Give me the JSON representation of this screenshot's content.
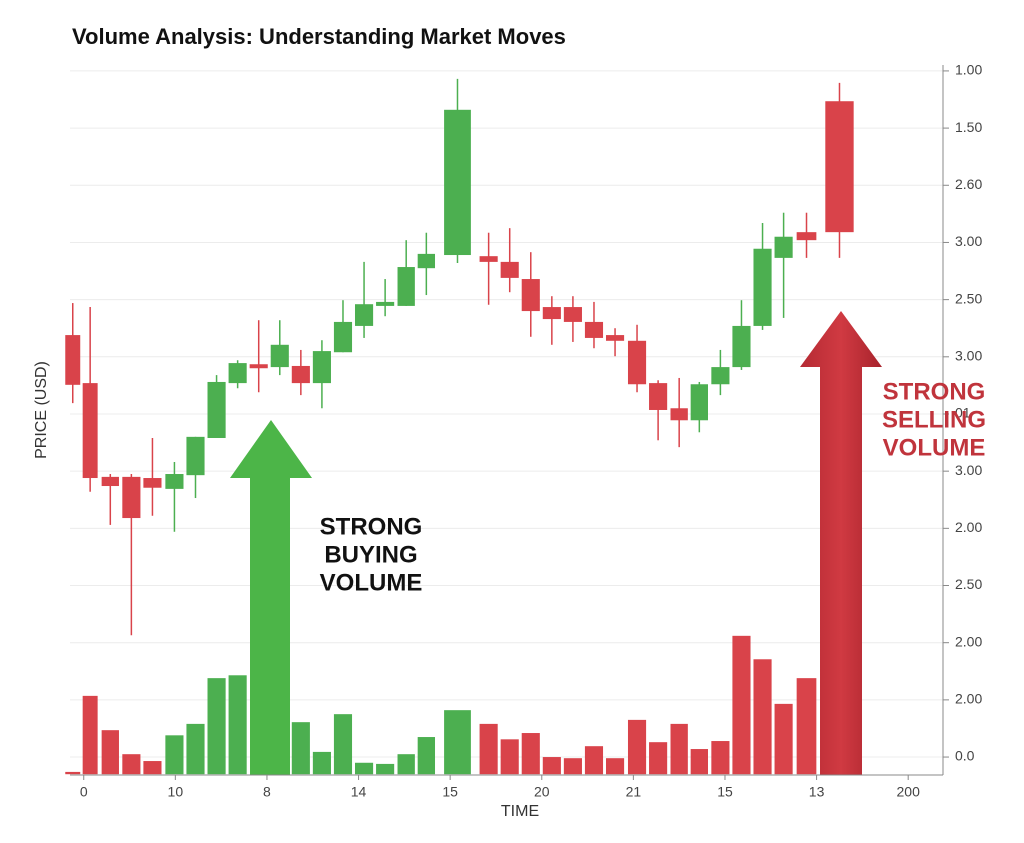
{
  "chart_data": {
    "type": "candlestick",
    "title": "Volume Analysis: Understanding Market Moves",
    "y_label": "PRICE (USD)",
    "x_label": "TIME",
    "grid": true,
    "up_color": "#4caf50",
    "down_color": "#d9434a",
    "ylim": [
      -0.3,
      12.1
    ],
    "yticks": [
      {
        "value": 12,
        "label": "1.00"
      },
      {
        "value": 11,
        "label": "1.50"
      },
      {
        "value": 10,
        "label": "2.60"
      },
      {
        "value": 9,
        "label": "3.00"
      },
      {
        "value": 8,
        "label": "2.50"
      },
      {
        "value": 7,
        "label": "3.00"
      },
      {
        "value": 6,
        "label": "01"
      },
      {
        "value": 5,
        "label": "3.00"
      },
      {
        "value": 4,
        "label": "2.00"
      },
      {
        "value": 3,
        "label": "2.50"
      },
      {
        "value": 2,
        "label": "2.00"
      },
      {
        "value": 1,
        "label": "2.00"
      },
      {
        "value": 0,
        "label": "0.0"
      }
    ],
    "xlim": [
      -0.15,
      9.38
    ],
    "xticks": [
      {
        "value": 0,
        "label": "0"
      },
      {
        "value": 1,
        "label": "10"
      },
      {
        "value": 2,
        "label": "8"
      },
      {
        "value": 3,
        "label": "14"
      },
      {
        "value": 4,
        "label": "15"
      },
      {
        "value": 5,
        "label": "20"
      },
      {
        "value": 6,
        "label": "21"
      },
      {
        "value": 7,
        "label": "15"
      },
      {
        "value": 8,
        "label": "13"
      },
      {
        "value": 9,
        "label": "200"
      }
    ],
    "candles": {
      "x": [
        -0.12,
        0.07,
        0.29,
        0.52,
        0.75,
        0.99,
        1.22,
        1.45,
        1.68,
        1.91,
        2.14,
        2.37,
        2.6,
        2.83,
        3.06,
        3.29,
        3.52,
        3.74,
        4.08,
        4.42,
        4.65,
        4.88,
        5.11,
        5.34,
        5.57,
        5.8,
        6.04,
        6.27,
        6.5,
        6.72,
        6.95,
        7.18,
        7.41,
        7.64,
        7.89,
        8.25
      ],
      "open": [
        7.38,
        6.54,
        4.9,
        4.9,
        4.88,
        4.69,
        4.93,
        5.58,
        6.54,
        6.87,
        6.82,
        6.84,
        6.54,
        7.08,
        7.54,
        7.89,
        7.89,
        8.55,
        8.78,
        8.76,
        8.66,
        8.36,
        7.87,
        7.87,
        7.61,
        7.38,
        7.28,
        6.54,
        6.1,
        5.89,
        6.52,
        6.82,
        7.54,
        8.73,
        9.18,
        11.47
      ],
      "close": [
        6.51,
        4.88,
        4.74,
        4.18,
        4.71,
        4.95,
        5.6,
        6.56,
        6.89,
        6.8,
        7.21,
        6.54,
        7.1,
        7.61,
        7.92,
        7.96,
        8.57,
        8.8,
        11.32,
        8.66,
        8.38,
        7.8,
        7.66,
        7.61,
        7.33,
        7.28,
        6.52,
        6.07,
        5.89,
        6.52,
        6.82,
        7.54,
        8.89,
        9.1,
        9.04,
        9.18
      ],
      "high": [
        7.94,
        7.87,
        4.95,
        4.95,
        5.58,
        5.16,
        5.6,
        6.68,
        6.94,
        7.64,
        7.64,
        7.12,
        7.29,
        7.99,
        8.66,
        8.36,
        9.04,
        9.17,
        11.86,
        9.17,
        9.25,
        8.83,
        8.06,
        8.06,
        7.96,
        7.5,
        7.56,
        6.59,
        6.63,
        6.56,
        7.12,
        7.99,
        9.34,
        9.52,
        9.52,
        11.79
      ],
      "low": [
        6.19,
        4.64,
        4.06,
        2.13,
        4.22,
        3.94,
        4.53,
        5.58,
        6.45,
        6.38,
        6.68,
        6.33,
        6.1,
        7.08,
        7.33,
        7.71,
        7.89,
        8.08,
        8.64,
        7.91,
        8.13,
        7.35,
        7.21,
        7.26,
        7.15,
        7.01,
        6.38,
        5.54,
        5.42,
        5.68,
        6.33,
        6.77,
        7.47,
        7.68,
        8.73,
        8.73
      ]
    },
    "volume": {
      "x": [
        -0.12,
        0.07,
        0.29,
        0.52,
        0.75,
        0.99,
        1.22,
        1.45,
        1.68,
        2.37,
        2.6,
        2.83,
        3.06,
        3.29,
        3.52,
        3.74,
        4.08,
        4.42,
        4.65,
        4.88,
        5.11,
        5.34,
        5.57,
        5.8,
        6.04,
        6.27,
        6.5,
        6.72,
        6.95,
        7.18,
        7.41,
        7.64,
        7.89
      ],
      "values": [
        -0.26,
        1.07,
        0.47,
        0.05,
        -0.07,
        0.38,
        0.58,
        1.38,
        1.43,
        0.61,
        0.09,
        0.75,
        -0.1,
        -0.12,
        0.05,
        0.35,
        0.82,
        0.58,
        0.31,
        0.42,
        0,
        -0.02,
        0.19,
        -0.02,
        0.65,
        0.26,
        0.58,
        0.14,
        0.28,
        2.12,
        1.71,
        0.93,
        1.38
      ],
      "colors": [
        "#d9434a",
        "#d9434a",
        "#d9434a",
        "#d9434a",
        "#d9434a",
        "#4caf50",
        "#4caf50",
        "#4caf50",
        "#4caf50",
        "#4caf50",
        "#4caf50",
        "#4caf50",
        "#4caf50",
        "#4caf50",
        "#4caf50",
        "#4caf50",
        "#4caf50",
        "#d9434a",
        "#d9434a",
        "#d9434a",
        "#d9434a",
        "#d9434a",
        "#d9434a",
        "#d9434a",
        "#d9434a",
        "#d9434a",
        "#d9434a",
        "#d9434a",
        "#d9434a",
        "#d9434a",
        "#d9434a",
        "#d9434a",
        "#d9434a"
      ]
    },
    "annotations": [
      {
        "lines": [
          "STRONG",
          "BUYING",
          "VOLUME"
        ],
        "color": "#111111"
      },
      {
        "lines": [
          "STRONG",
          "SELLING",
          "VOLUME"
        ],
        "color": "#c0343c"
      }
    ]
  }
}
